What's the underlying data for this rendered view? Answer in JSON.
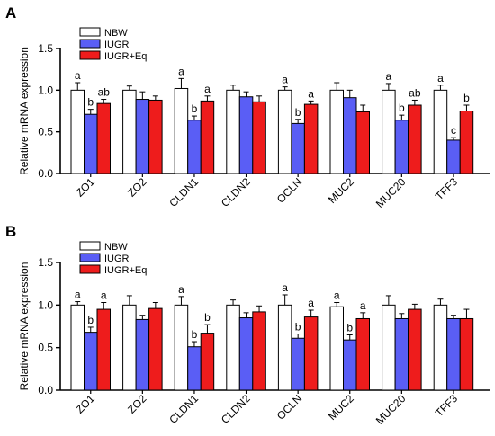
{
  "colors": {
    "NBW": "#ffffff",
    "IUGR": "#5a5ef5",
    "IUGR+Eq": "#ee1c1c",
    "axis": "#000000"
  },
  "chart_data": [
    {
      "panel": "A",
      "type": "bar",
      "ylabel": "Relative mRNA expression",
      "ylim": [
        0,
        1.5
      ],
      "yticks": [
        "0.0",
        "0.5",
        "1.0",
        "1.5"
      ],
      "legend": [
        "NBW",
        "IUGR",
        "IUGR+Eq"
      ],
      "legend_position": "top-left",
      "categories": [
        "ZO1",
        "ZO2",
        "CLDN1",
        "CLDN2",
        "OCLN",
        "MUC2",
        "MUC20",
        "TFF3"
      ],
      "series": [
        {
          "name": "NBW",
          "values": [
            1.0,
            1.0,
            1.02,
            1.0,
            1.0,
            1.0,
            1.0,
            1.0
          ],
          "errors": [
            0.09,
            0.05,
            0.12,
            0.06,
            0.04,
            0.09,
            0.08,
            0.06
          ],
          "labels": [
            "a",
            "",
            "a",
            "",
            "a",
            "",
            "a",
            "a"
          ]
        },
        {
          "name": "IUGR",
          "values": [
            0.71,
            0.89,
            0.64,
            0.92,
            0.6,
            0.91,
            0.64,
            0.4
          ],
          "errors": [
            0.06,
            0.09,
            0.05,
            0.06,
            0.05,
            0.09,
            0.06,
            0.03
          ],
          "labels": [
            "b",
            "",
            "b",
            "",
            "b",
            "",
            "b",
            "c"
          ]
        },
        {
          "name": "IUGR+Eq",
          "values": [
            0.84,
            0.88,
            0.87,
            0.86,
            0.83,
            0.74,
            0.82,
            0.75
          ],
          "errors": [
            0.05,
            0.05,
            0.06,
            0.07,
            0.04,
            0.08,
            0.06,
            0.07
          ],
          "labels": [
            "ab",
            "",
            "a",
            "",
            "a",
            "",
            "ab",
            "b"
          ]
        }
      ]
    },
    {
      "panel": "B",
      "type": "bar",
      "ylabel": "Relative mRNA expression",
      "ylim": [
        0,
        1.5
      ],
      "yticks": [
        "0.0",
        "0.5",
        "1.0",
        "1.5"
      ],
      "legend": [
        "NBW",
        "IUGR",
        "IUGR+Eq"
      ],
      "legend_position": "top-left",
      "categories": [
        "ZO1",
        "ZO2",
        "CLDN1",
        "CLDN2",
        "OCLN",
        "MUC2",
        "MUC20",
        "TFF3"
      ],
      "series": [
        {
          "name": "NBW",
          "values": [
            1.0,
            1.0,
            1.0,
            1.0,
            1.0,
            0.98,
            1.0,
            1.0
          ],
          "errors": [
            0.04,
            0.11,
            0.1,
            0.06,
            0.12,
            0.05,
            0.11,
            0.07
          ],
          "labels": [
            "a",
            "",
            "a",
            "",
            "a",
            "a",
            "",
            ""
          ]
        },
        {
          "name": "IUGR",
          "values": [
            0.68,
            0.83,
            0.51,
            0.85,
            0.61,
            0.59,
            0.84,
            0.84
          ],
          "errors": [
            0.06,
            0.05,
            0.06,
            0.06,
            0.05,
            0.06,
            0.06,
            0.04
          ],
          "labels": [
            "b",
            "",
            "b",
            "",
            "b",
            "b",
            "",
            ""
          ]
        },
        {
          "name": "IUGR+Eq",
          "values": [
            0.95,
            0.96,
            0.67,
            0.92,
            0.86,
            0.84,
            0.95,
            0.84
          ],
          "errors": [
            0.08,
            0.07,
            0.1,
            0.07,
            0.08,
            0.07,
            0.06,
            0.11
          ],
          "labels": [
            "a",
            "",
            "b",
            "",
            "a",
            "a",
            "",
            ""
          ]
        }
      ]
    }
  ]
}
